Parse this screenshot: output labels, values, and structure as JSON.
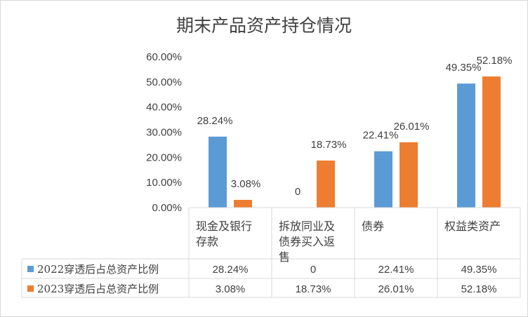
{
  "chart_data": {
    "type": "bar",
    "title": "期末产品资产持仓情况",
    "categories": [
      [
        "现金及银行",
        "存款"
      ],
      [
        "拆放同业及",
        "债券买入返",
        "售"
      ],
      [
        "债券"
      ],
      [
        "权益类资产"
      ]
    ],
    "series": [
      {
        "name": "2022穿透后占总资产比例",
        "values": [
          28.24,
          0,
          22.41,
          49.35
        ],
        "labels": [
          "28.24%",
          "0",
          "22.41%",
          "49.35%"
        ],
        "color": "#5b9bd5"
      },
      {
        "name": "2023穿透后占总资产比例",
        "values": [
          3.08,
          18.73,
          26.01,
          52.18
        ],
        "labels": [
          "3.08%",
          "18.73%",
          "26.01%",
          "52.18%"
        ],
        "color": "#ed7d31"
      }
    ],
    "yticks": [
      "0.00%",
      "10.00%",
      "20.00%",
      "30.00%",
      "40.00%",
      "50.00%",
      "60.00%"
    ],
    "ylim": [
      0,
      60
    ],
    "ystep": 10,
    "grid": false,
    "legend": "data-table"
  }
}
